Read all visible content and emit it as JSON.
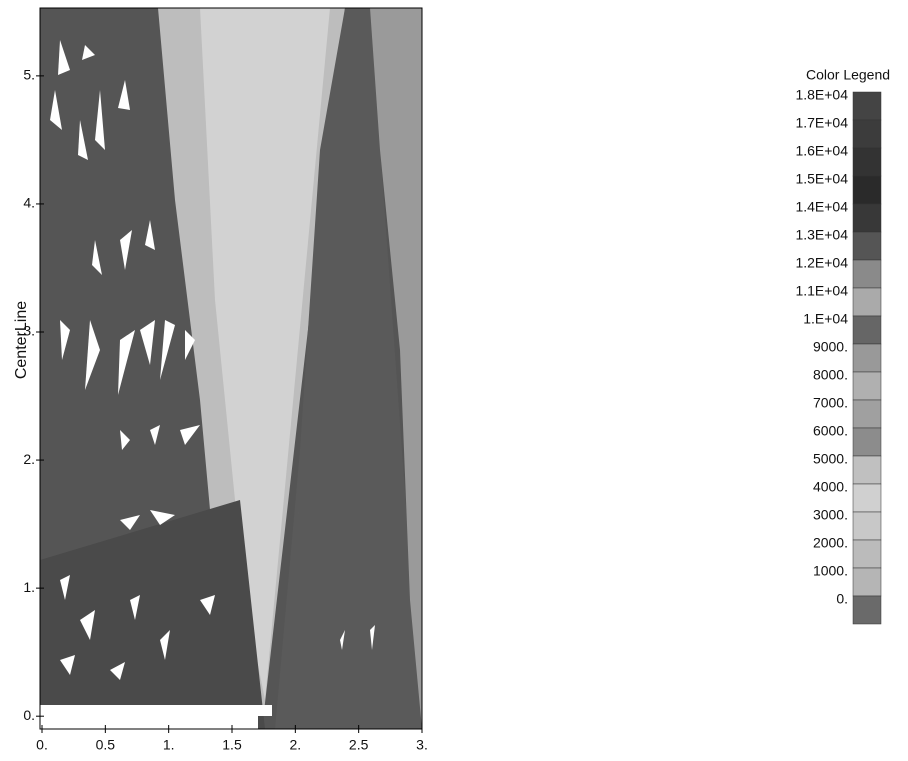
{
  "chart_data": {
    "type": "contour",
    "ylabel": "CenterLine",
    "legend_title": "Color Legend",
    "xlim": [
      0,
      3
    ],
    "ylim": [
      -0.1,
      5.53
    ],
    "xticks": [
      {
        "value": 0,
        "label": "0."
      },
      0.5,
      {
        "value": 1,
        "label": "1."
      },
      1.5,
      {
        "value": 2,
        "label": "2."
      },
      2.5,
      {
        "value": 3,
        "label": "3."
      }
    ],
    "yticks": [
      {
        "value": 0,
        "label": "0."
      },
      {
        "value": 1,
        "label": "1."
      },
      {
        "value": 2,
        "label": "2."
      },
      {
        "value": 3,
        "label": "3."
      },
      {
        "value": 4,
        "label": "4."
      },
      {
        "value": 5,
        "label": "5."
      }
    ],
    "levels": [
      {
        "value": 18000,
        "label": "1.8E+04"
      },
      {
        "value": 17000,
        "label": "1.7E+04"
      },
      {
        "value": 16000,
        "label": "1.6E+04"
      },
      {
        "value": 15000,
        "label": "1.5E+04"
      },
      {
        "value": 14000,
        "label": "1.4E+04"
      },
      {
        "value": 13000,
        "label": "1.3E+04"
      },
      {
        "value": 12000,
        "label": "1.2E+04"
      },
      {
        "value": 11000,
        "label": "1.1E+04"
      },
      {
        "value": 10000,
        "label": "1.E+04"
      },
      {
        "value": 9000,
        "label": "9000."
      },
      {
        "value": 8000,
        "label": "8000."
      },
      {
        "value": 7000,
        "label": "7000."
      },
      {
        "value": 6000,
        "label": "6000."
      },
      {
        "value": 5000,
        "label": "5000."
      },
      {
        "value": 4000,
        "label": "4000."
      },
      {
        "value": 3000,
        "label": "3000."
      },
      {
        "value": 2000,
        "label": "2000."
      },
      {
        "value": 1000,
        "label": "1000."
      },
      {
        "value": 0,
        "label": "0."
      }
    ],
    "colors": [
      "#444",
      "#3c3c3c",
      "#333",
      "#2a2a2a",
      "#383838",
      "#555",
      "#8a8a8a",
      "#aaa",
      "#666",
      "#999",
      "#b0b0b0",
      "#a0a0a0",
      "#8c8c8c",
      "#c0c0c0",
      "#d0d0d0",
      "#c8c8c8",
      "#bbb",
      "#b5b5b5",
      "#6a6a6a"
    ]
  }
}
